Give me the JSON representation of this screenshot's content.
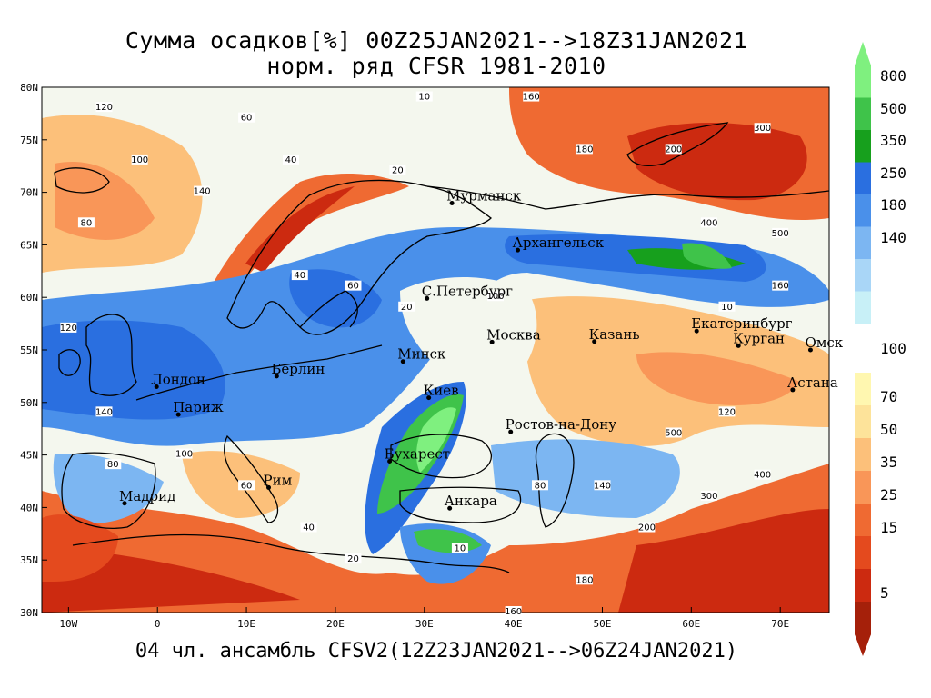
{
  "title": {
    "line1": "Сумма осадков[%] 00Z25JAN2021-->18Z31JAN2021",
    "line2": "норм. ряд CFSR 1981-2010",
    "line3": "04 чл. ансамбль CFSV2(12Z23JAN2021-->06Z24JAN2021)"
  },
  "axes": {
    "lat_ticks": [
      "80N",
      "75N",
      "70N",
      "65N",
      "60N",
      "55N",
      "50N",
      "45N",
      "40N",
      "35N",
      "30N"
    ],
    "lon_ticks": [
      "10W",
      "0",
      "10E",
      "20E",
      "30E",
      "40E",
      "50E",
      "60E",
      "70E"
    ]
  },
  "cities": [
    {
      "name": "Мурманск",
      "lon": 33.1,
      "lat": 68.97
    },
    {
      "name": "Архангельск",
      "lon": 40.5,
      "lat": 64.5
    },
    {
      "name": "С.Петербург",
      "lon": 30.3,
      "lat": 59.9
    },
    {
      "name": "Москва",
      "lon": 37.6,
      "lat": 55.75
    },
    {
      "name": "Казань",
      "lon": 49.1,
      "lat": 55.8
    },
    {
      "name": "Екатеринбург",
      "lon": 60.6,
      "lat": 56.8
    },
    {
      "name": "Курган",
      "lon": 65.3,
      "lat": 55.4
    },
    {
      "name": "Омск",
      "lon": 73.4,
      "lat": 55.0
    },
    {
      "name": "Астана",
      "lon": 71.4,
      "lat": 51.2
    },
    {
      "name": "Минск",
      "lon": 27.6,
      "lat": 53.9
    },
    {
      "name": "Киев",
      "lon": 30.5,
      "lat": 50.45
    },
    {
      "name": "Берлин",
      "lon": 13.4,
      "lat": 52.5
    },
    {
      "name": "Лондон",
      "lon": -0.1,
      "lat": 51.5
    },
    {
      "name": "Париж",
      "lon": 2.35,
      "lat": 48.85
    },
    {
      "name": "Ростов-на-Дону",
      "lon": 39.7,
      "lat": 47.2
    },
    {
      "name": "Бухарест",
      "lon": 26.1,
      "lat": 44.4
    },
    {
      "name": "Рим",
      "lon": 12.5,
      "lat": 41.9
    },
    {
      "name": "Мадрид",
      "lon": -3.7,
      "lat": 40.4
    },
    {
      "name": "Анкара",
      "lon": 32.85,
      "lat": 39.93
    }
  ],
  "colorbar": {
    "upper": [
      {
        "value": "800",
        "color": "#7ff07f"
      },
      {
        "value": "500",
        "color": "#3fc34a"
      },
      {
        "value": "350",
        "color": "#17a01d"
      },
      {
        "value": "250",
        "color": "#2a6fe0"
      },
      {
        "value": "180",
        "color": "#4a90ea"
      },
      {
        "value": "140",
        "color": "#7cb6f2"
      },
      {
        "value": "",
        "color": "#a9d6f7"
      },
      {
        "value": "",
        "color": "#c8f0f7"
      }
    ],
    "middle_label": "100",
    "lower": [
      {
        "value": "70",
        "color": "#fff7b0"
      },
      {
        "value": "50",
        "color": "#fde39a"
      },
      {
        "value": "35",
        "color": "#fcc07a"
      },
      {
        "value": "25",
        "color": "#f99658"
      },
      {
        "value": "15",
        "color": "#ef6a32"
      },
      {
        "value": "",
        "color": "#e44a1e"
      },
      {
        "value": "5",
        "color": "#cc2a10"
      },
      {
        "value": "",
        "color": "#a5200a"
      }
    ],
    "lower_arrow_color": "#a5200a",
    "upper_arrow_color": "#7ff07f"
  },
  "contour_labels": [
    "120",
    "140",
    "80",
    "100",
    "60",
    "40",
    "20",
    "10",
    "160",
    "180",
    "200",
    "300",
    "400",
    "500"
  ]
}
